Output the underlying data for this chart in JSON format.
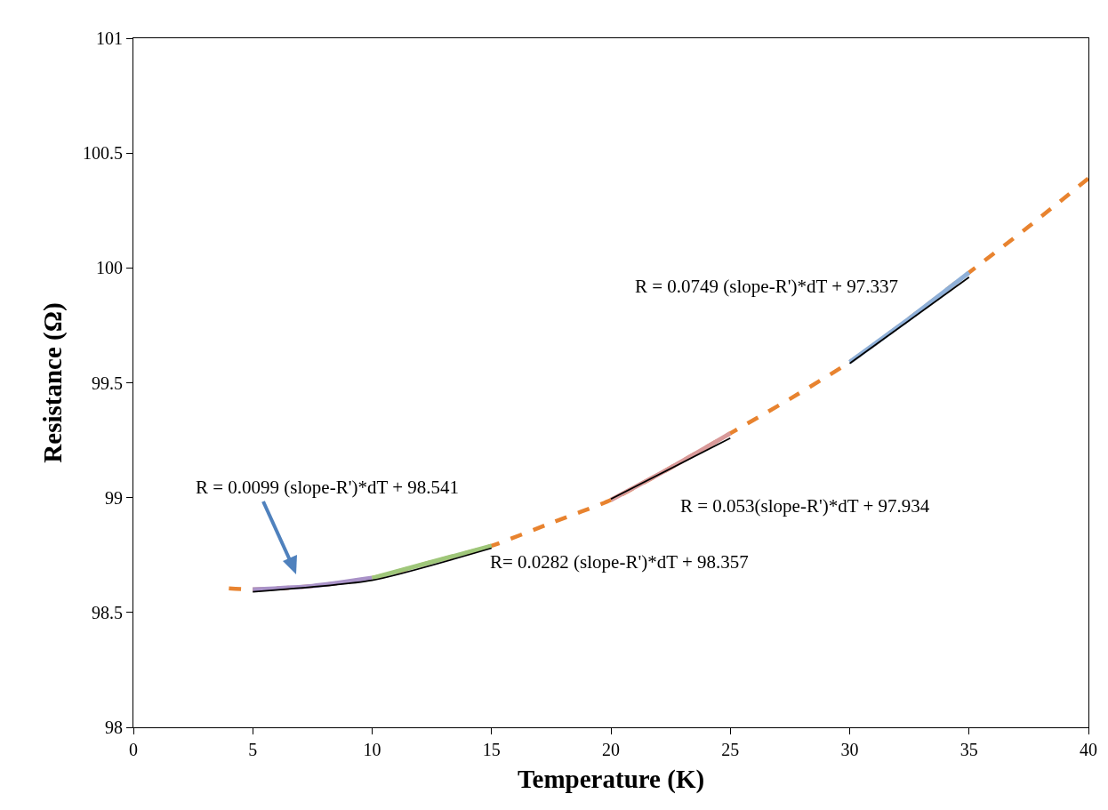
{
  "chart_data": {
    "type": "line",
    "xlabel": "Temperature (K)",
    "ylabel": "Resistance (Ω)",
    "xlim": [
      0,
      40
    ],
    "xticks": [
      0,
      5,
      10,
      15,
      20,
      25,
      30,
      35,
      40
    ],
    "ylim": [
      98,
      101
    ],
    "yticks": [
      98,
      98.5,
      99,
      99.5,
      100,
      100.5,
      101
    ],
    "grid": false,
    "marker": "none",
    "series": [
      {
        "color": "#e8832f",
        "line_style": "dashed",
        "x": [
          4,
          5,
          7.5,
          10,
          12.5,
          15,
          17.5,
          20,
          22.5,
          25,
          27.5,
          30,
          32.5,
          35,
          37.5,
          40
        ],
        "values": [
          98.605,
          98.6,
          98.615,
          98.65,
          98.72,
          98.79,
          98.89,
          98.99,
          99.13,
          99.28,
          99.43,
          99.59,
          99.78,
          99.98,
          100.18,
          100.39
        ]
      },
      {
        "color": "#a992c8",
        "line_style": "solid",
        "x": [
          5,
          7.5,
          10
        ],
        "values": [
          98.6,
          98.615,
          98.65
        ]
      },
      {
        "color": "#9fc77a",
        "line_style": "solid",
        "x": [
          10,
          12.5,
          15
        ],
        "values": [
          98.65,
          98.72,
          98.79
        ]
      },
      {
        "color": "#d99a9a",
        "line_style": "solid",
        "x": [
          20,
          22.5,
          25
        ],
        "values": [
          98.99,
          99.13,
          99.28
        ]
      },
      {
        "color": "#8fb0d8",
        "line_style": "solid",
        "x": [
          30,
          32.5,
          35
        ],
        "values": [
          99.59,
          99.78,
          99.98
        ]
      },
      {
        "color": "#000000",
        "line_style": "solid",
        "x": [
          5,
          10,
          15
        ],
        "values": [
          98.59,
          98.64,
          98.78
        ]
      },
      {
        "color": "#000000",
        "line_style": "solid",
        "x": [
          20,
          25
        ],
        "values": [
          98.994,
          99.259
        ]
      },
      {
        "color": "#000000",
        "line_style": "solid",
        "x": [
          30,
          35
        ],
        "values": [
          99.584,
          99.96
        ]
      }
    ],
    "annotations": [
      "R = 0.0099 (slope-R')*dT + 98.541",
      "R= 0.0282 (slope-R')*dT + 98.357",
      "R = 0.053(slope-R')*dT + 97.934",
      "R = 0.0749 (slope-R')*dT + 97.337"
    ]
  }
}
